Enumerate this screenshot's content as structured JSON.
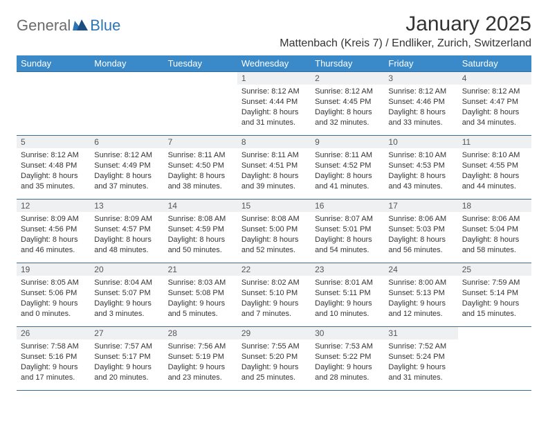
{
  "logo": {
    "part1": "General",
    "part2": "Blue"
  },
  "title": "January 2025",
  "location": "Mattenbach (Kreis 7) / Endliker, Zurich, Switzerland",
  "colors": {
    "header_bg": "#3a8ac9",
    "header_text": "#ffffff",
    "border": "#3a6a95",
    "daynum_bg": "#eef0f2",
    "logo_gray": "#6b6b6b",
    "logo_blue": "#2d74b5"
  },
  "weekdays": [
    "Sunday",
    "Monday",
    "Tuesday",
    "Wednesday",
    "Thursday",
    "Friday",
    "Saturday"
  ],
  "labels": {
    "sunrise": "Sunrise:",
    "sunset": "Sunset:",
    "daylight": "Daylight:"
  },
  "weeks": [
    [
      null,
      null,
      null,
      {
        "n": "1",
        "sr": "8:12 AM",
        "ss": "4:44 PM",
        "dl": "8 hours and 31 minutes."
      },
      {
        "n": "2",
        "sr": "8:12 AM",
        "ss": "4:45 PM",
        "dl": "8 hours and 32 minutes."
      },
      {
        "n": "3",
        "sr": "8:12 AM",
        "ss": "4:46 PM",
        "dl": "8 hours and 33 minutes."
      },
      {
        "n": "4",
        "sr": "8:12 AM",
        "ss": "4:47 PM",
        "dl": "8 hours and 34 minutes."
      }
    ],
    [
      {
        "n": "5",
        "sr": "8:12 AM",
        "ss": "4:48 PM",
        "dl": "8 hours and 35 minutes."
      },
      {
        "n": "6",
        "sr": "8:12 AM",
        "ss": "4:49 PM",
        "dl": "8 hours and 37 minutes."
      },
      {
        "n": "7",
        "sr": "8:11 AM",
        "ss": "4:50 PM",
        "dl": "8 hours and 38 minutes."
      },
      {
        "n": "8",
        "sr": "8:11 AM",
        "ss": "4:51 PM",
        "dl": "8 hours and 39 minutes."
      },
      {
        "n": "9",
        "sr": "8:11 AM",
        "ss": "4:52 PM",
        "dl": "8 hours and 41 minutes."
      },
      {
        "n": "10",
        "sr": "8:10 AM",
        "ss": "4:53 PM",
        "dl": "8 hours and 43 minutes."
      },
      {
        "n": "11",
        "sr": "8:10 AM",
        "ss": "4:55 PM",
        "dl": "8 hours and 44 minutes."
      }
    ],
    [
      {
        "n": "12",
        "sr": "8:09 AM",
        "ss": "4:56 PM",
        "dl": "8 hours and 46 minutes."
      },
      {
        "n": "13",
        "sr": "8:09 AM",
        "ss": "4:57 PM",
        "dl": "8 hours and 48 minutes."
      },
      {
        "n": "14",
        "sr": "8:08 AM",
        "ss": "4:59 PM",
        "dl": "8 hours and 50 minutes."
      },
      {
        "n": "15",
        "sr": "8:08 AM",
        "ss": "5:00 PM",
        "dl": "8 hours and 52 minutes."
      },
      {
        "n": "16",
        "sr": "8:07 AM",
        "ss": "5:01 PM",
        "dl": "8 hours and 54 minutes."
      },
      {
        "n": "17",
        "sr": "8:06 AM",
        "ss": "5:03 PM",
        "dl": "8 hours and 56 minutes."
      },
      {
        "n": "18",
        "sr": "8:06 AM",
        "ss": "5:04 PM",
        "dl": "8 hours and 58 minutes."
      }
    ],
    [
      {
        "n": "19",
        "sr": "8:05 AM",
        "ss": "5:06 PM",
        "dl": "9 hours and 0 minutes."
      },
      {
        "n": "20",
        "sr": "8:04 AM",
        "ss": "5:07 PM",
        "dl": "9 hours and 3 minutes."
      },
      {
        "n": "21",
        "sr": "8:03 AM",
        "ss": "5:08 PM",
        "dl": "9 hours and 5 minutes."
      },
      {
        "n": "22",
        "sr": "8:02 AM",
        "ss": "5:10 PM",
        "dl": "9 hours and 7 minutes."
      },
      {
        "n": "23",
        "sr": "8:01 AM",
        "ss": "5:11 PM",
        "dl": "9 hours and 10 minutes."
      },
      {
        "n": "24",
        "sr": "8:00 AM",
        "ss": "5:13 PM",
        "dl": "9 hours and 12 minutes."
      },
      {
        "n": "25",
        "sr": "7:59 AM",
        "ss": "5:14 PM",
        "dl": "9 hours and 15 minutes."
      }
    ],
    [
      {
        "n": "26",
        "sr": "7:58 AM",
        "ss": "5:16 PM",
        "dl": "9 hours and 17 minutes."
      },
      {
        "n": "27",
        "sr": "7:57 AM",
        "ss": "5:17 PM",
        "dl": "9 hours and 20 minutes."
      },
      {
        "n": "28",
        "sr": "7:56 AM",
        "ss": "5:19 PM",
        "dl": "9 hours and 23 minutes."
      },
      {
        "n": "29",
        "sr": "7:55 AM",
        "ss": "5:20 PM",
        "dl": "9 hours and 25 minutes."
      },
      {
        "n": "30",
        "sr": "7:53 AM",
        "ss": "5:22 PM",
        "dl": "9 hours and 28 minutes."
      },
      {
        "n": "31",
        "sr": "7:52 AM",
        "ss": "5:24 PM",
        "dl": "9 hours and 31 minutes."
      },
      null
    ]
  ]
}
